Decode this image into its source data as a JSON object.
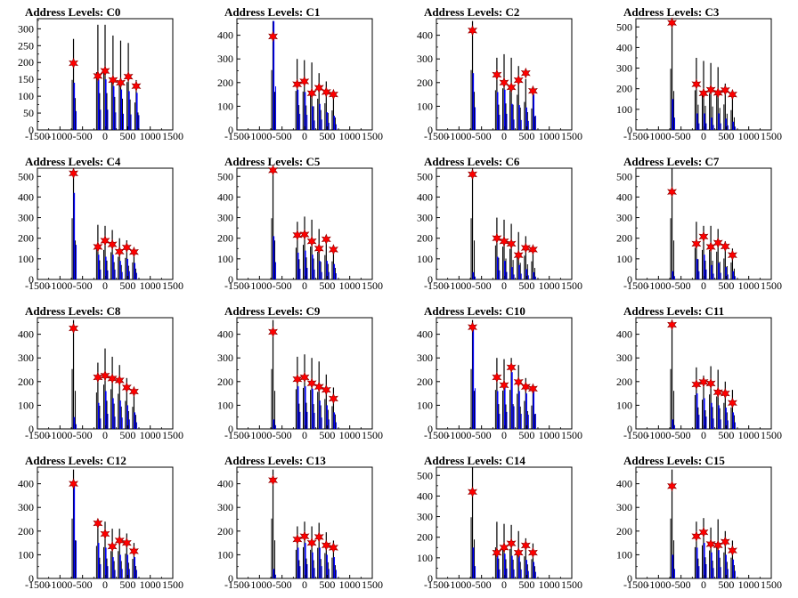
{
  "chart_data": [
    {
      "type": "bar",
      "title": "Address Levels: C0",
      "xlim": [
        -1500,
        1500
      ],
      "ylim": [
        0,
        330
      ],
      "yticks": [
        0,
        50,
        100,
        150,
        200,
        250,
        300
      ],
      "xticks": [
        -1500,
        -1000,
        -500,
        0,
        500,
        1000,
        1500
      ],
      "peaks": [
        {
          "x": -700,
          "black": 270,
          "blue": 140,
          "star": 198
        },
        {
          "x": -160,
          "black": 312,
          "blue": 150,
          "star": 160
        },
        {
          "x": 0,
          "black": 312,
          "blue": 150,
          "star": 175
        },
        {
          "x": 175,
          "black": 280,
          "blue": 130,
          "star": 148
        },
        {
          "x": 345,
          "black": 265,
          "blue": 120,
          "star": 140
        },
        {
          "x": 515,
          "black": 258,
          "blue": 115,
          "star": 158
        },
        {
          "x": 690,
          "black": 148,
          "blue": 110,
          "star": 130
        }
      ]
    },
    {
      "type": "bar",
      "title": "Address Levels: C1",
      "xlim": [
        -1500,
        1500
      ],
      "ylim": [
        0,
        470
      ],
      "yticks": [
        0,
        100,
        200,
        300,
        400
      ],
      "xticks": [
        -1500,
        -1000,
        -500,
        0,
        500,
        1000,
        1500
      ],
      "peaks": [
        {
          "x": -700,
          "black": 460,
          "blue": 460,
          "star": 395
        },
        {
          "x": -165,
          "black": 300,
          "blue": 170,
          "star": 193
        },
        {
          "x": -5,
          "black": 295,
          "blue": 160,
          "star": 205
        },
        {
          "x": 160,
          "black": 285,
          "blue": 100,
          "star": 155
        },
        {
          "x": 320,
          "black": 240,
          "blue": 110,
          "star": 178
        },
        {
          "x": 480,
          "black": 205,
          "blue": 75,
          "star": 160
        },
        {
          "x": 640,
          "black": 150,
          "blue": 60,
          "star": 150
        }
      ]
    },
    {
      "type": "bar",
      "title": "Address Levels: C2",
      "xlim": [
        -1500,
        1500
      ],
      "ylim": [
        0,
        470
      ],
      "yticks": [
        0,
        100,
        200,
        300,
        400
      ],
      "xticks": [
        -1500,
        -1000,
        -500,
        0,
        500,
        1000,
        1500
      ],
      "peaks": [
        {
          "x": -700,
          "black": 460,
          "blue": 240,
          "star": 420
        },
        {
          "x": -160,
          "black": 305,
          "blue": 160,
          "star": 233
        },
        {
          "x": 0,
          "black": 320,
          "blue": 170,
          "star": 200
        },
        {
          "x": 160,
          "black": 305,
          "blue": 110,
          "star": 180
        },
        {
          "x": 320,
          "black": 270,
          "blue": 105,
          "star": 210
        },
        {
          "x": 480,
          "black": 215,
          "blue": 95,
          "star": 240
        },
        {
          "x": 640,
          "black": 165,
          "blue": 150,
          "star": 165
        }
      ]
    },
    {
      "type": "bar",
      "title": "Address Levels: C3",
      "xlim": [
        -1500,
        1500
      ],
      "ylim": [
        0,
        540
      ],
      "yticks": [
        0,
        100,
        200,
        300,
        400,
        500
      ],
      "xticks": [
        -1500,
        -1000,
        -500,
        0,
        500,
        1000,
        1500
      ],
      "peaks": [
        {
          "x": -700,
          "black": 540,
          "blue": 150,
          "star": 520
        },
        {
          "x": -160,
          "black": 350,
          "blue": 80,
          "star": 222
        },
        {
          "x": 0,
          "black": 335,
          "blue": 80,
          "star": 178
        },
        {
          "x": 160,
          "black": 325,
          "blue": 60,
          "star": 195
        },
        {
          "x": 320,
          "black": 305,
          "blue": 80,
          "star": 180
        },
        {
          "x": 480,
          "black": 225,
          "blue": 55,
          "star": 193
        },
        {
          "x": 640,
          "black": 175,
          "blue": 40,
          "star": 172
        }
      ]
    },
    {
      "type": "bar",
      "title": "Address Levels: C4",
      "xlim": [
        -1500,
        1500
      ],
      "ylim": [
        0,
        540
      ],
      "yticks": [
        0,
        100,
        200,
        300,
        400,
        500
      ],
      "xticks": [
        -1500,
        -1000,
        -500,
        0,
        500,
        1000,
        1500
      ],
      "peaks": [
        {
          "x": -700,
          "black": 540,
          "blue": 420,
          "star": 515
        },
        {
          "x": -160,
          "black": 265,
          "blue": 120,
          "star": 158
        },
        {
          "x": 0,
          "black": 260,
          "blue": 110,
          "star": 188
        },
        {
          "x": 160,
          "black": 240,
          "blue": 120,
          "star": 170
        },
        {
          "x": 320,
          "black": 200,
          "blue": 90,
          "star": 135
        },
        {
          "x": 480,
          "black": 190,
          "blue": 100,
          "star": 155
        },
        {
          "x": 640,
          "black": 150,
          "blue": 80,
          "star": 133
        }
      ]
    },
    {
      "type": "bar",
      "title": "Address Levels: C5",
      "xlim": [
        -1500,
        1500
      ],
      "ylim": [
        0,
        540
      ],
      "yticks": [
        0,
        100,
        200,
        300,
        400,
        500
      ],
      "xticks": [
        -1500,
        -1000,
        -500,
        0,
        500,
        1000,
        1500
      ],
      "peaks": [
        {
          "x": -700,
          "black": 540,
          "blue": 210,
          "star": 530
        },
        {
          "x": -160,
          "black": 280,
          "blue": 130,
          "star": 215
        },
        {
          "x": 0,
          "black": 305,
          "blue": 140,
          "star": 218
        },
        {
          "x": 160,
          "black": 290,
          "blue": 120,
          "star": 185
        },
        {
          "x": 320,
          "black": 245,
          "blue": 90,
          "star": 150
        },
        {
          "x": 480,
          "black": 215,
          "blue": 90,
          "star": 195
        },
        {
          "x": 640,
          "black": 160,
          "blue": 75,
          "star": 145
        }
      ]
    },
    {
      "type": "bar",
      "title": "Address Levels: C6",
      "xlim": [
        -1500,
        1500
      ],
      "ylim": [
        0,
        540
      ],
      "yticks": [
        0,
        100,
        200,
        300,
        400,
        500
      ],
      "xticks": [
        -1500,
        -1000,
        -500,
        0,
        500,
        1000,
        1500
      ],
      "peaks": [
        {
          "x": -700,
          "black": 540,
          "blue": 35,
          "star": 510
        },
        {
          "x": -160,
          "black": 300,
          "blue": 110,
          "star": 200
        },
        {
          "x": 0,
          "black": 290,
          "blue": 90,
          "star": 185
        },
        {
          "x": 160,
          "black": 270,
          "blue": 60,
          "star": 173
        },
        {
          "x": 320,
          "black": 230,
          "blue": 70,
          "star": 118
        },
        {
          "x": 480,
          "black": 210,
          "blue": 50,
          "star": 153
        },
        {
          "x": 640,
          "black": 160,
          "blue": 35,
          "star": 145
        }
      ]
    },
    {
      "type": "bar",
      "title": "Address Levels: C7",
      "xlim": [
        -1500,
        1500
      ],
      "ylim": [
        0,
        540
      ],
      "yticks": [
        0,
        100,
        200,
        300,
        400,
        500
      ],
      "xticks": [
        -1500,
        -1000,
        -500,
        0,
        500,
        1000,
        1500
      ],
      "peaks": [
        {
          "x": -700,
          "black": 540,
          "blue": 40,
          "star": 425
        },
        {
          "x": -160,
          "black": 280,
          "blue": 100,
          "star": 173
        },
        {
          "x": 0,
          "black": 260,
          "blue": 120,
          "star": 208
        },
        {
          "x": 160,
          "black": 260,
          "blue": 70,
          "star": 158
        },
        {
          "x": 320,
          "black": 245,
          "blue": 80,
          "star": 178
        },
        {
          "x": 480,
          "black": 185,
          "blue": 60,
          "star": 160
        },
        {
          "x": 640,
          "black": 150,
          "blue": 40,
          "star": 118
        }
      ]
    },
    {
      "type": "bar",
      "title": "Address Levels: C8",
      "xlim": [
        -1500,
        1500
      ],
      "ylim": [
        0,
        470
      ],
      "yticks": [
        0,
        100,
        200,
        300,
        400
      ],
      "xticks": [
        -1500,
        -1000,
        -500,
        0,
        500,
        1000,
        1500
      ],
      "peaks": [
        {
          "x": -700,
          "black": 460,
          "blue": 50,
          "star": 425
        },
        {
          "x": -160,
          "black": 280,
          "blue": 110,
          "star": 218
        },
        {
          "x": 0,
          "black": 340,
          "blue": 160,
          "star": 225
        },
        {
          "x": 160,
          "black": 305,
          "blue": 130,
          "star": 213
        },
        {
          "x": 320,
          "black": 270,
          "blue": 120,
          "star": 205
        },
        {
          "x": 480,
          "black": 215,
          "blue": 100,
          "star": 175
        },
        {
          "x": 640,
          "black": 170,
          "blue": 70,
          "star": 158
        }
      ]
    },
    {
      "type": "bar",
      "title": "Address Levels: C9",
      "xlim": [
        -1500,
        1500
      ],
      "ylim": [
        0,
        470
      ],
      "yticks": [
        0,
        100,
        200,
        300,
        400
      ],
      "xticks": [
        -1500,
        -1000,
        -500,
        0,
        500,
        1000,
        1500
      ],
      "peaks": [
        {
          "x": -700,
          "black": 460,
          "blue": 40,
          "star": 410
        },
        {
          "x": -160,
          "black": 305,
          "blue": 180,
          "star": 210
        },
        {
          "x": 0,
          "black": 315,
          "blue": 180,
          "star": 218
        },
        {
          "x": 160,
          "black": 300,
          "blue": 170,
          "star": 193
        },
        {
          "x": 320,
          "black": 285,
          "blue": 120,
          "star": 178
        },
        {
          "x": 480,
          "black": 230,
          "blue": 100,
          "star": 165
        },
        {
          "x": 640,
          "black": 175,
          "blue": 70,
          "star": 128
        }
      ]
    },
    {
      "type": "bar",
      "title": "Address Levels: C10",
      "xlim": [
        -1500,
        1500
      ],
      "ylim": [
        0,
        470
      ],
      "yticks": [
        0,
        100,
        200,
        300,
        400
      ],
      "xticks": [
        -1500,
        -1000,
        -500,
        0,
        500,
        1000,
        1500
      ],
      "peaks": [
        {
          "x": -700,
          "black": 460,
          "blue": 430,
          "star": 430
        },
        {
          "x": -160,
          "black": 300,
          "blue": 160,
          "star": 218
        },
        {
          "x": 0,
          "black": 295,
          "blue": 180,
          "star": 185
        },
        {
          "x": 160,
          "black": 300,
          "blue": 240,
          "star": 260
        },
        {
          "x": 320,
          "black": 270,
          "blue": 160,
          "star": 198
        },
        {
          "x": 480,
          "black": 215,
          "blue": 150,
          "star": 178
        },
        {
          "x": 640,
          "black": 180,
          "blue": 160,
          "star": 170
        }
      ]
    },
    {
      "type": "bar",
      "title": "Address Levels: C11",
      "xlim": [
        -1500,
        1500
      ],
      "ylim": [
        0,
        470
      ],
      "yticks": [
        0,
        100,
        200,
        300,
        400
      ],
      "xticks": [
        -1500,
        -1000,
        -500,
        0,
        500,
        1000,
        1500
      ],
      "peaks": [
        {
          "x": -700,
          "black": 460,
          "blue": 40,
          "star": 440
        },
        {
          "x": -160,
          "black": 260,
          "blue": 150,
          "star": 188
        },
        {
          "x": 0,
          "black": 225,
          "blue": 130,
          "star": 198
        },
        {
          "x": 160,
          "black": 265,
          "blue": 110,
          "star": 192
        },
        {
          "x": 320,
          "black": 250,
          "blue": 100,
          "star": 155
        },
        {
          "x": 480,
          "black": 200,
          "blue": 90,
          "star": 150
        },
        {
          "x": 640,
          "black": 165,
          "blue": 70,
          "star": 110
        }
      ]
    },
    {
      "type": "bar",
      "title": "Address Levels: C12",
      "xlim": [
        -1500,
        1500
      ],
      "ylim": [
        0,
        470
      ],
      "yticks": [
        0,
        100,
        200,
        300,
        400
      ],
      "xticks": [
        -1500,
        -1000,
        -500,
        0,
        500,
        1000,
        1500
      ],
      "peaks": [
        {
          "x": -700,
          "black": 460,
          "blue": 400,
          "star": 400
        },
        {
          "x": -160,
          "black": 250,
          "blue": 150,
          "star": 233
        },
        {
          "x": 0,
          "black": 240,
          "blue": 130,
          "star": 188
        },
        {
          "x": 160,
          "black": 210,
          "blue": 90,
          "star": 135
        },
        {
          "x": 320,
          "black": 210,
          "blue": 100,
          "star": 160
        },
        {
          "x": 480,
          "black": 190,
          "blue": 100,
          "star": 150
        },
        {
          "x": 640,
          "black": 150,
          "blue": 90,
          "star": 115
        }
      ]
    },
    {
      "type": "bar",
      "title": "Address Levels: C13",
      "xlim": [
        -1500,
        1500
      ],
      "ylim": [
        0,
        470
      ],
      "yticks": [
        0,
        100,
        200,
        300,
        400
      ],
      "xticks": [
        -1500,
        -1000,
        -500,
        0,
        500,
        1000,
        1500
      ],
      "peaks": [
        {
          "x": -700,
          "black": 460,
          "blue": 40,
          "star": 415
        },
        {
          "x": -160,
          "black": 220,
          "blue": 130,
          "star": 165
        },
        {
          "x": 0,
          "black": 240,
          "blue": 150,
          "star": 178
        },
        {
          "x": 160,
          "black": 220,
          "blue": 110,
          "star": 150
        },
        {
          "x": 320,
          "black": 235,
          "blue": 130,
          "star": 175
        },
        {
          "x": 480,
          "black": 195,
          "blue": 100,
          "star": 140
        },
        {
          "x": 640,
          "black": 160,
          "blue": 90,
          "star": 130
        }
      ]
    },
    {
      "type": "bar",
      "title": "Address Levels: C14",
      "xlim": [
        -1500,
        1500
      ],
      "ylim": [
        0,
        540
      ],
      "yticks": [
        0,
        100,
        200,
        300,
        400,
        500
      ],
      "xticks": [
        -1500,
        -1000,
        -500,
        0,
        500,
        1000,
        1500
      ],
      "peaks": [
        {
          "x": -700,
          "black": 540,
          "blue": 150,
          "star": 420
        },
        {
          "x": -160,
          "black": 275,
          "blue": 110,
          "star": 125
        },
        {
          "x": 0,
          "black": 265,
          "blue": 120,
          "star": 150
        },
        {
          "x": 160,
          "black": 260,
          "blue": 110,
          "star": 170
        },
        {
          "x": 320,
          "black": 230,
          "blue": 110,
          "star": 125
        },
        {
          "x": 480,
          "black": 195,
          "blue": 90,
          "star": 160
        },
        {
          "x": 640,
          "black": 170,
          "blue": 80,
          "star": 125
        }
      ]
    },
    {
      "type": "bar",
      "title": "Address Levels: C15",
      "xlim": [
        -1500,
        1500
      ],
      "ylim": [
        0,
        470
      ],
      "yticks": [
        0,
        100,
        200,
        300,
        400
      ],
      "xticks": [
        -1500,
        -1000,
        -500,
        0,
        500,
        1000,
        1500
      ],
      "peaks": [
        {
          "x": -700,
          "black": 460,
          "blue": 100,
          "star": 390
        },
        {
          "x": -160,
          "black": 240,
          "blue": 130,
          "star": 178
        },
        {
          "x": 0,
          "black": 255,
          "blue": 150,
          "star": 195
        },
        {
          "x": 160,
          "black": 215,
          "blue": 110,
          "star": 145
        },
        {
          "x": 320,
          "black": 250,
          "blue": 120,
          "star": 140
        },
        {
          "x": 480,
          "black": 200,
          "blue": 100,
          "star": 155
        },
        {
          "x": 640,
          "black": 160,
          "blue": 80,
          "star": 118
        }
      ]
    }
  ],
  "colors": {
    "black_hist": "#000000",
    "blue_hist": "#0000ff",
    "marker": "#ff0000",
    "marker_edge": "#8b0000"
  }
}
